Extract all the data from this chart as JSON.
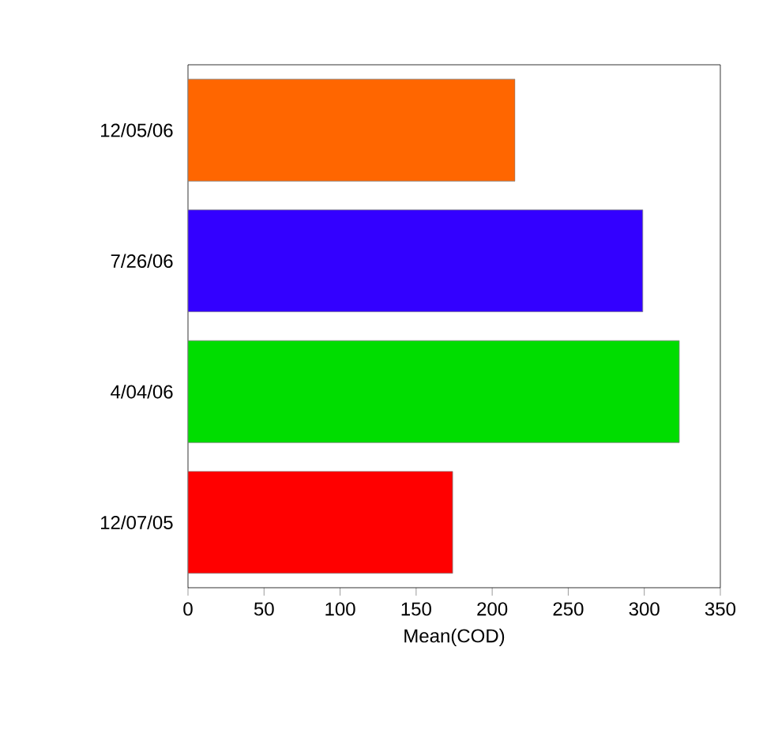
{
  "chart_data": {
    "type": "bar",
    "orientation": "horizontal",
    "xlabel": "Mean(COD)",
    "categories": [
      "12/05/06",
      "7/26/06",
      "4/04/06",
      "12/07/05"
    ],
    "values": [
      215,
      299,
      323,
      174
    ],
    "colors": [
      "#ff6600",
      "#3300ff",
      "#00dd00",
      "#ff0000"
    ],
    "xlim": [
      0,
      350
    ],
    "xticks": [
      0,
      50,
      100,
      150,
      200,
      250,
      300,
      350
    ],
    "grid": false
  }
}
